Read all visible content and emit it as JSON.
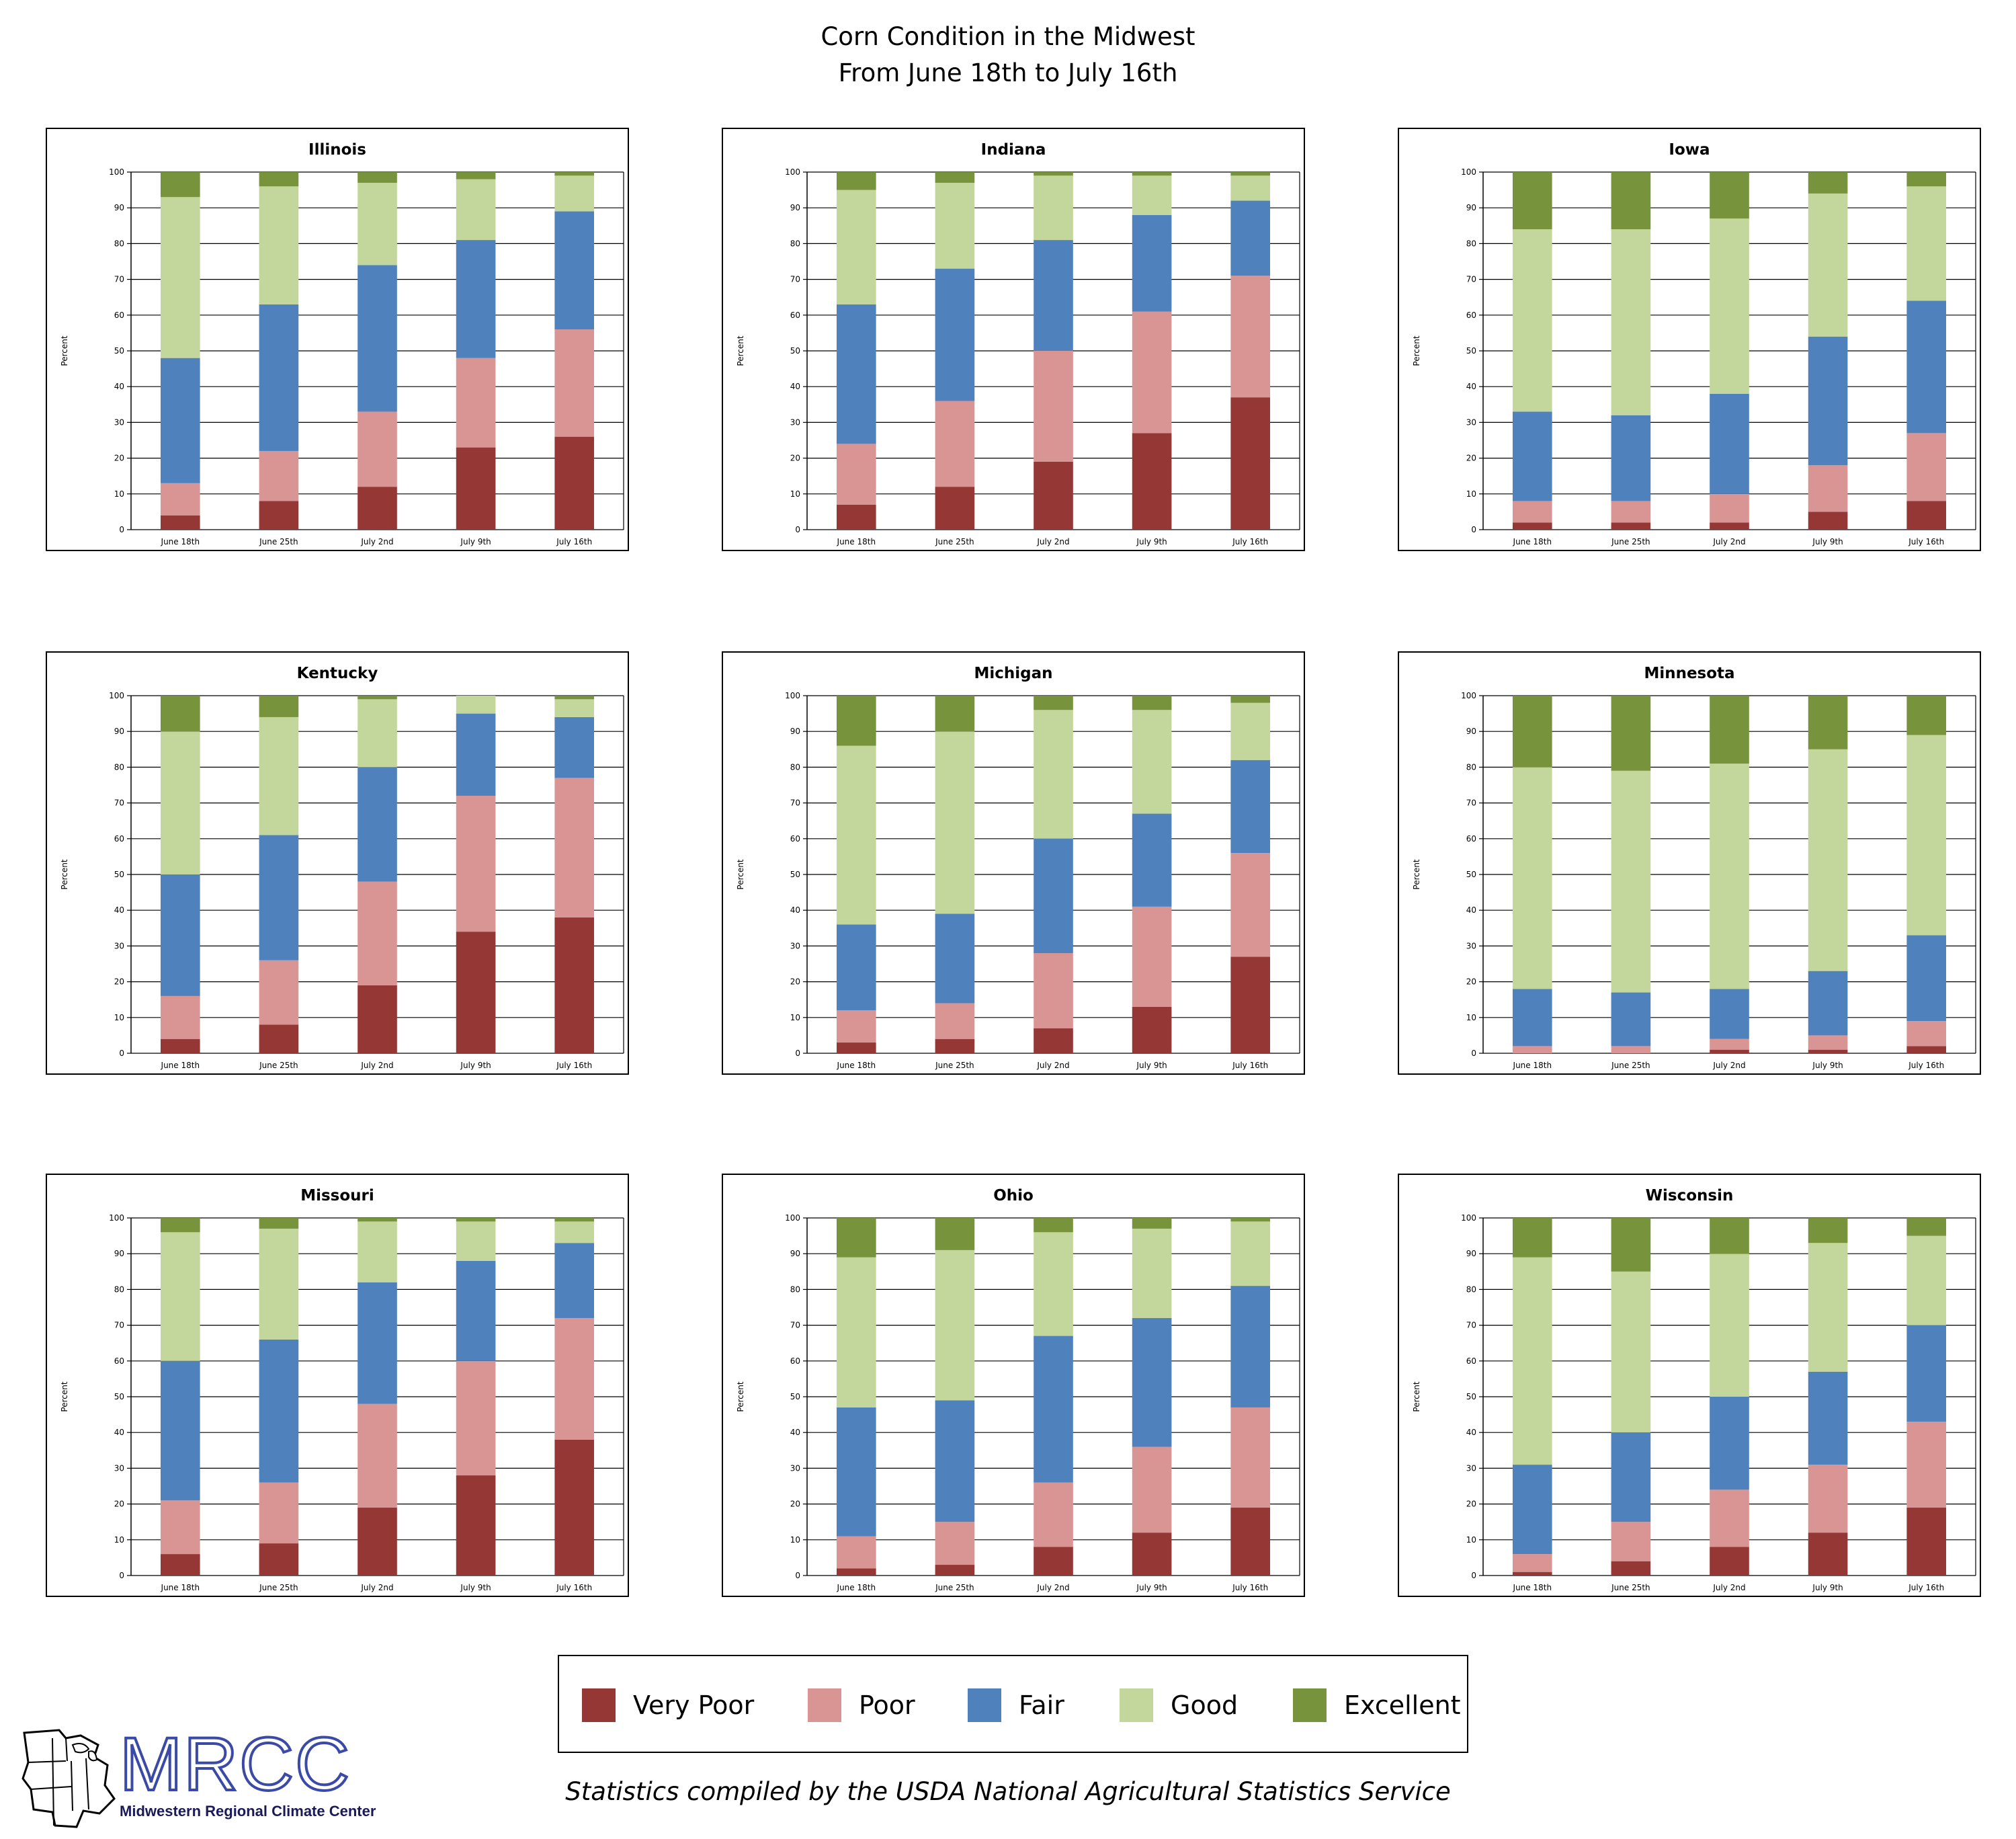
{
  "page": {
    "title_line_1": "Corn Condition in the Midwest",
    "title_line_2": "From June 18th to July 16th",
    "source_note": "Statistics compiled by the USDA National Agricultural Statistics Service",
    "logo": {
      "acronym": "MRCC",
      "name": "Midwestern Regional Climate Center"
    }
  },
  "legend": [
    {
      "label": "Very Poor",
      "color": "#953735"
    },
    {
      "label": "Poor",
      "color": "#d99594"
    },
    {
      "label": "Fair",
      "color": "#4f81bd"
    },
    {
      "label": "Good",
      "color": "#c3d69b"
    },
    {
      "label": "Excellent",
      "color": "#77933c"
    }
  ],
  "chart_data": [
    {
      "type": "bar",
      "stacked": true,
      "title": "Illinois",
      "ylabel": "Percent",
      "ylim": [
        0,
        100
      ],
      "yticks": [
        0,
        10,
        20,
        30,
        40,
        50,
        60,
        70,
        80,
        90,
        100
      ],
      "categories": [
        "June 18th",
        "June 25th",
        "July 2nd",
        "July 9th",
        "July 16th"
      ],
      "series": [
        {
          "name": "Very Poor",
          "values": [
            4,
            8,
            12,
            23,
            26
          ]
        },
        {
          "name": "Poor",
          "values": [
            9,
            14,
            21,
            25,
            30
          ]
        },
        {
          "name": "Fair",
          "values": [
            35,
            41,
            41,
            33,
            33
          ]
        },
        {
          "name": "Good",
          "values": [
            45,
            33,
            23,
            17,
            10
          ]
        },
        {
          "name": "Excellent",
          "values": [
            7,
            4,
            3,
            2,
            1
          ]
        }
      ]
    },
    {
      "type": "bar",
      "stacked": true,
      "title": "Indiana",
      "ylabel": "Percent",
      "ylim": [
        0,
        100
      ],
      "yticks": [
        0,
        10,
        20,
        30,
        40,
        50,
        60,
        70,
        80,
        90,
        100
      ],
      "categories": [
        "June 18th",
        "June 25th",
        "July 2nd",
        "July 9th",
        "July 16th"
      ],
      "series": [
        {
          "name": "Very Poor",
          "values": [
            7,
            12,
            19,
            27,
            37
          ]
        },
        {
          "name": "Poor",
          "values": [
            17,
            24,
            31,
            34,
            34
          ]
        },
        {
          "name": "Fair",
          "values": [
            39,
            37,
            31,
            27,
            21
          ]
        },
        {
          "name": "Good",
          "values": [
            32,
            24,
            18,
            11,
            7
          ]
        },
        {
          "name": "Excellent",
          "values": [
            5,
            3,
            1,
            1,
            1
          ]
        }
      ]
    },
    {
      "type": "bar",
      "stacked": true,
      "title": "Iowa",
      "ylabel": "Percent",
      "ylim": [
        0,
        100
      ],
      "yticks": [
        0,
        10,
        20,
        30,
        40,
        50,
        60,
        70,
        80,
        90,
        100
      ],
      "categories": [
        "June 18th",
        "June 25th",
        "July 2nd",
        "July 9th",
        "July 16th"
      ],
      "series": [
        {
          "name": "Very Poor",
          "values": [
            2,
            2,
            2,
            5,
            8
          ]
        },
        {
          "name": "Poor",
          "values": [
            6,
            6,
            8,
            13,
            19
          ]
        },
        {
          "name": "Fair",
          "values": [
            25,
            24,
            28,
            36,
            37
          ]
        },
        {
          "name": "Good",
          "values": [
            51,
            52,
            49,
            40,
            32
          ]
        },
        {
          "name": "Excellent",
          "values": [
            16,
            16,
            13,
            6,
            4
          ]
        }
      ]
    },
    {
      "type": "bar",
      "stacked": true,
      "title": "Kentucky",
      "ylabel": "Percent",
      "ylim": [
        0,
        100
      ],
      "yticks": [
        0,
        10,
        20,
        30,
        40,
        50,
        60,
        70,
        80,
        90,
        100
      ],
      "categories": [
        "June 18th",
        "June 25th",
        "July 2nd",
        "July 9th",
        "July 16th"
      ],
      "series": [
        {
          "name": "Very Poor",
          "values": [
            4,
            8,
            19,
            34,
            38
          ]
        },
        {
          "name": "Poor",
          "values": [
            12,
            18,
            29,
            38,
            39
          ]
        },
        {
          "name": "Fair",
          "values": [
            34,
            35,
            32,
            23,
            17
          ]
        },
        {
          "name": "Good",
          "values": [
            40,
            33,
            19,
            5,
            5
          ]
        },
        {
          "name": "Excellent",
          "values": [
            10,
            6,
            1,
            0,
            1
          ]
        }
      ]
    },
    {
      "type": "bar",
      "stacked": true,
      "title": "Michigan",
      "ylabel": "Percent",
      "ylim": [
        0,
        100
      ],
      "yticks": [
        0,
        10,
        20,
        30,
        40,
        50,
        60,
        70,
        80,
        90,
        100
      ],
      "categories": [
        "June 18th",
        "June 25th",
        "July 2nd",
        "July 9th",
        "July 16th"
      ],
      "series": [
        {
          "name": "Very Poor",
          "values": [
            3,
            4,
            7,
            13,
            27
          ]
        },
        {
          "name": "Poor",
          "values": [
            9,
            10,
            21,
            28,
            29
          ]
        },
        {
          "name": "Fair",
          "values": [
            24,
            25,
            32,
            26,
            26
          ]
        },
        {
          "name": "Good",
          "values": [
            50,
            51,
            36,
            29,
            16
          ]
        },
        {
          "name": "Excellent",
          "values": [
            14,
            10,
            4,
            4,
            2
          ]
        }
      ]
    },
    {
      "type": "bar",
      "stacked": true,
      "title": "Minnesota",
      "ylabel": "Percent",
      "ylim": [
        0,
        100
      ],
      "yticks": [
        0,
        10,
        20,
        30,
        40,
        50,
        60,
        70,
        80,
        90,
        100
      ],
      "categories": [
        "June 18th",
        "June 25th",
        "July 2nd",
        "July 9th",
        "July 16th"
      ],
      "series": [
        {
          "name": "Very Poor",
          "values": [
            0,
            0,
            1,
            1,
            2
          ]
        },
        {
          "name": "Poor",
          "values": [
            2,
            2,
            3,
            4,
            7
          ]
        },
        {
          "name": "Fair",
          "values": [
            16,
            15,
            14,
            18,
            24
          ]
        },
        {
          "name": "Good",
          "values": [
            62,
            62,
            63,
            62,
            56
          ]
        },
        {
          "name": "Excellent",
          "values": [
            20,
            21,
            19,
            15,
            11
          ]
        }
      ]
    },
    {
      "type": "bar",
      "stacked": true,
      "title": "Missouri",
      "ylabel": "Percent",
      "ylim": [
        0,
        100
      ],
      "yticks": [
        0,
        10,
        20,
        30,
        40,
        50,
        60,
        70,
        80,
        90,
        100
      ],
      "categories": [
        "June 18th",
        "June 25th",
        "July 2nd",
        "July 9th",
        "July 16th"
      ],
      "series": [
        {
          "name": "Very Poor",
          "values": [
            6,
            9,
            19,
            28,
            38
          ]
        },
        {
          "name": "Poor",
          "values": [
            15,
            17,
            29,
            32,
            34
          ]
        },
        {
          "name": "Fair",
          "values": [
            39,
            40,
            34,
            28,
            21
          ]
        },
        {
          "name": "Good",
          "values": [
            36,
            31,
            17,
            11,
            6
          ]
        },
        {
          "name": "Excellent",
          "values": [
            4,
            3,
            1,
            1,
            1
          ]
        }
      ]
    },
    {
      "type": "bar",
      "stacked": true,
      "title": "Ohio",
      "ylabel": "Percent",
      "ylim": [
        0,
        100
      ],
      "yticks": [
        0,
        10,
        20,
        30,
        40,
        50,
        60,
        70,
        80,
        90,
        100
      ],
      "categories": [
        "June 18th",
        "June 25th",
        "July 2nd",
        "July 9th",
        "July 16th"
      ],
      "series": [
        {
          "name": "Very Poor",
          "values": [
            2,
            3,
            8,
            12,
            19
          ]
        },
        {
          "name": "Poor",
          "values": [
            9,
            12,
            18,
            24,
            28
          ]
        },
        {
          "name": "Fair",
          "values": [
            36,
            34,
            41,
            36,
            34
          ]
        },
        {
          "name": "Good",
          "values": [
            42,
            42,
            29,
            25,
            18
          ]
        },
        {
          "name": "Excellent",
          "values": [
            11,
            9,
            4,
            3,
            1
          ]
        }
      ]
    },
    {
      "type": "bar",
      "stacked": true,
      "title": "Wisconsin",
      "ylabel": "Percent",
      "ylim": [
        0,
        100
      ],
      "yticks": [
        0,
        10,
        20,
        30,
        40,
        50,
        60,
        70,
        80,
        90,
        100
      ],
      "categories": [
        "June 18th",
        "June 25th",
        "July 2nd",
        "July 9th",
        "July 16th"
      ],
      "series": [
        {
          "name": "Very Poor",
          "values": [
            1,
            4,
            8,
            12,
            19
          ]
        },
        {
          "name": "Poor",
          "values": [
            5,
            11,
            16,
            19,
            24
          ]
        },
        {
          "name": "Fair",
          "values": [
            25,
            25,
            26,
            26,
            27
          ]
        },
        {
          "name": "Good",
          "values": [
            58,
            45,
            40,
            36,
            25
          ]
        },
        {
          "name": "Excellent",
          "values": [
            11,
            15,
            10,
            7,
            5
          ]
        }
      ]
    }
  ]
}
